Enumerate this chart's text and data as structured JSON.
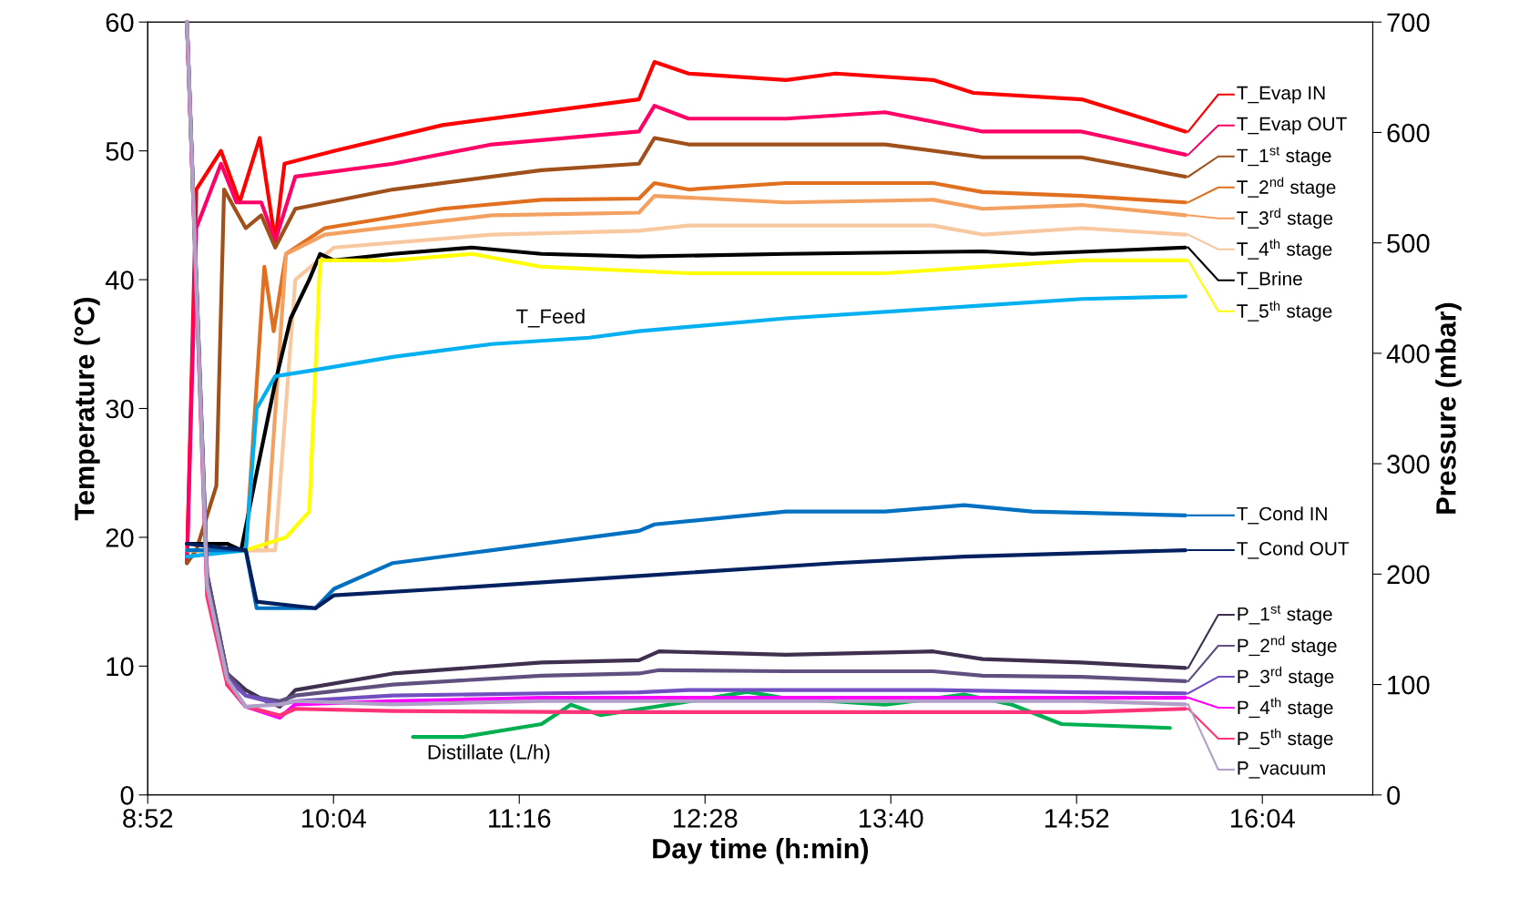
{
  "chart_data": {
    "type": "line",
    "xlabel": "Day time (h:min)",
    "ylabel": "Temperature (°C)",
    "y2label": "Pressure (mbar)",
    "xlim": [
      8.8667,
      16.78
    ],
    "xticks": [
      {
        "value": 8.8667,
        "label": "8:52"
      },
      {
        "value": 10.0667,
        "label": "10:04"
      },
      {
        "value": 11.2667,
        "label": "11:16"
      },
      {
        "value": 12.4667,
        "label": "12:28"
      },
      {
        "value": 13.6667,
        "label": "13:40"
      },
      {
        "value": 14.8667,
        "label": "14:52"
      },
      {
        "value": 16.0667,
        "label": "16:04"
      }
    ],
    "ylim": [
      0,
      60
    ],
    "yticks": [
      0,
      10,
      20,
      30,
      40,
      50,
      60
    ],
    "y2lim": [
      0,
      700
    ],
    "y2ticks": [
      0,
      100,
      200,
      300,
      400,
      500,
      600,
      700
    ],
    "grid": false,
    "legend": "right",
    "marker": "none",
    "line_style": "solid",
    "series": [
      {
        "name": "T_Evap IN",
        "color": "#ff0000",
        "x": [
          9.12,
          9.18,
          9.34,
          9.46,
          9.59,
          9.69,
          9.75,
          10.07,
          10.77,
          11.72,
          12.04,
          12.14,
          12.36,
          12.99,
          13.31,
          13.94,
          14.2,
          14.9,
          15.57
        ],
        "values": [
          18,
          47,
          50,
          46,
          51,
          43,
          49,
          50,
          52,
          53.5,
          54,
          56.9,
          56,
          55.5,
          56,
          55.5,
          54.5,
          54,
          51.5
        ]
      },
      {
        "name": "T_Evap OUT",
        "color": "#ff0066",
        "x": [
          9.12,
          9.18,
          9.34,
          9.44,
          9.6,
          9.69,
          9.82,
          10.45,
          11.09,
          12.04,
          12.14,
          12.36,
          12.99,
          13.63,
          14.26,
          14.9,
          15.57
        ],
        "values": [
          18,
          44,
          49,
          46,
          46,
          43,
          48,
          49,
          50.5,
          51.5,
          53.5,
          52.5,
          52.5,
          53,
          51.5,
          51.5,
          49.7
        ]
      },
      {
        "name": "T_1$^{st}$ stage",
        "color": "#a0501a",
        "x": [
          9.12,
          9.18,
          9.31,
          9.36,
          9.5,
          9.6,
          9.69,
          9.82,
          10.45,
          11.41,
          12.04,
          12.14,
          12.36,
          13.63,
          14.26,
          14.9,
          15.57
        ],
        "values": [
          18,
          19,
          24,
          47,
          44,
          45,
          42.5,
          45.5,
          47,
          48.5,
          49,
          51,
          50.5,
          50.5,
          49.5,
          49.5,
          48
        ]
      },
      {
        "name": "T_2$^{nd}$ stage",
        "color": "#e07020",
        "x": [
          9.12,
          9.5,
          9.62,
          9.68,
          9.76,
          10.01,
          10.77,
          11.41,
          12.04,
          12.14,
          12.36,
          12.99,
          13.94,
          14.26,
          14.9,
          15.57
        ],
        "values": [
          19,
          19,
          41,
          36,
          42,
          44,
          45.5,
          46.2,
          46.3,
          47.5,
          47,
          47.5,
          47.5,
          46.8,
          46.5,
          46
        ]
      },
      {
        "name": "T_3$^{rd}$ stage",
        "color": "#f4a060",
        "x": [
          9.12,
          9.63,
          9.76,
          10.01,
          11.09,
          12.04,
          12.14,
          12.99,
          13.94,
          14.26,
          14.9,
          15.57
        ],
        "values": [
          19,
          19,
          42,
          43.5,
          45,
          45.2,
          46.5,
          46,
          46.2,
          45.5,
          45.8,
          45
        ]
      },
      {
        "name": "T_4$^{th}$ stage",
        "color": "#f8c8a0",
        "x": [
          9.12,
          9.69,
          9.82,
          10.07,
          11.09,
          12.04,
          12.36,
          13.94,
          14.26,
          14.9,
          15.57
        ],
        "values": [
          19,
          19,
          40,
          42.5,
          43.5,
          43.8,
          44.2,
          44.2,
          43.5,
          44,
          43.5
        ]
      },
      {
        "name": "T_Brine",
        "color": "#000000",
        "x": [
          9.12,
          9.38,
          9.47,
          9.57,
          9.69,
          9.79,
          9.91,
          9.98,
          10.07,
          10.45,
          10.96,
          11.41,
          12.04,
          12.99,
          14.26,
          14.58,
          15.57
        ],
        "values": [
          19.5,
          19.5,
          19,
          25,
          32,
          37,
          40,
          42,
          41.5,
          42,
          42.5,
          42,
          41.8,
          42,
          42.2,
          42,
          42.5
        ]
      },
      {
        "name": "T_5$^{th}$ stage",
        "color": "#ffff00",
        "x": [
          9.12,
          9.5,
          9.76,
          9.91,
          9.98,
          10.45,
          10.96,
          11.41,
          12.36,
          13.63,
          14.26,
          14.9,
          15.57
        ],
        "values": [
          19,
          19,
          20,
          22,
          41.5,
          41.5,
          42,
          41,
          40.5,
          40.5,
          41,
          41.5,
          41.5
        ]
      },
      {
        "color": "#00b0f0",
        "x": [
          9.12,
          9.5,
          9.57,
          9.69,
          9.95,
          10.45,
          11.09,
          11.72,
          12.04,
          12.99,
          14.26,
          14.9,
          15.57
        ],
        "values": [
          18.5,
          19,
          30,
          32.5,
          33,
          34,
          35,
          35.5,
          36,
          37,
          38,
          38.5,
          38.7
        ]
      },
      {
        "name": "T_Cond IN",
        "color": "#0070c0",
        "x": [
          9.12,
          9.5,
          9.57,
          9.95,
          10.07,
          10.45,
          11.09,
          12.04,
          12.14,
          12.99,
          13.63,
          14.14,
          14.58,
          15.57
        ],
        "values": [
          19,
          19,
          14.5,
          14.5,
          16,
          18,
          19,
          20.5,
          21,
          22,
          22,
          22.5,
          22,
          21.7
        ]
      },
      {
        "name": "T_Cond OUT",
        "color": "#002060",
        "x": [
          9.12,
          9.5,
          9.57,
          9.95,
          10.07,
          10.77,
          12.04,
          13.31,
          14.14,
          15.57
        ],
        "values": [
          19.5,
          19,
          15,
          14.5,
          15.5,
          16,
          17,
          18,
          18.5,
          19
        ]
      },
      {
        "color": "#00b050",
        "x": [
          10.58,
          10.9,
          11.41,
          11.6,
          11.79,
          12.23,
          12.74,
          12.99,
          13.63,
          14.14,
          14.45,
          14.77,
          15.47
        ],
        "values": [
          4.5,
          4.5,
          5.5,
          7,
          6.2,
          7,
          8,
          7.5,
          7,
          7.8,
          7,
          5.5,
          5.2
        ]
      },
      {
        "name": "P_1$^{st}$ stage",
        "color": "#403050",
        "axis": "y2",
        "x": [
          9.12,
          9.25,
          9.38,
          9.5,
          9.63,
          9.72,
          9.82,
          10.45,
          11.41,
          12.04,
          12.17,
          12.99,
          13.94,
          14.26,
          14.9,
          15.57
        ],
        "values": [
          700,
          200,
          110,
          95,
          85,
          80,
          95,
          110,
          120,
          122,
          130,
          127,
          130,
          123,
          120,
          115
        ]
      },
      {
        "name": "P_2$^{nd}$ stage",
        "color": "#605080",
        "axis": "y2",
        "x": [
          9.12,
          9.25,
          9.38,
          9.5,
          9.72,
          9.82,
          10.45,
          11.41,
          12.04,
          12.17,
          12.99,
          13.94,
          14.26,
          14.9,
          15.57
        ],
        "values": [
          700,
          200,
          110,
          90,
          85,
          90,
          100,
          108,
          110,
          113,
          112,
          112,
          108,
          107,
          103
        ]
      },
      {
        "name": "P_3$^{rd}$ stage",
        "color": "#7050c0",
        "axis": "y2",
        "x": [
          9.12,
          9.25,
          9.38,
          9.5,
          9.72,
          9.82,
          10.45,
          11.41,
          12.04,
          12.36,
          13.94,
          14.9,
          15.57
        ],
        "values": [
          700,
          190,
          105,
          90,
          82,
          85,
          90,
          92,
          93,
          95,
          95,
          93,
          92
        ]
      },
      {
        "name": "P_4$^{th}$ stage",
        "color": "#ff00ff",
        "axis": "y2",
        "x": [
          9.38,
          9.5,
          9.72,
          9.82,
          10.45,
          11.41,
          13.63,
          14.9,
          15.57
        ],
        "values": [
          100,
          80,
          70,
          82,
          85,
          88,
          88,
          88,
          88
        ]
      },
      {
        "name": "P_5$^{th}$ stage",
        "color": "#ff3377",
        "axis": "y2",
        "x": [
          9.12,
          9.25,
          9.38,
          9.5,
          9.72,
          9.82,
          10.45,
          11.72,
          14.9,
          15.57
        ],
        "values": [
          700,
          180,
          100,
          80,
          72,
          78,
          76,
          75,
          75,
          78
        ]
      },
      {
        "name": "P_vacuum",
        "color": "#b0a0c8",
        "axis": "y2",
        "x": [
          9.12,
          9.25,
          9.38,
          9.5,
          9.72,
          9.82,
          10.45,
          11.41,
          12.04,
          13.63,
          14.9,
          15.57
        ],
        "values": [
          700,
          190,
          105,
          80,
          82,
          85,
          82,
          85,
          85,
          85,
          85,
          82
        ]
      }
    ],
    "annotations": [
      {
        "text": "T_Feed",
        "x": 11.47,
        "y": 35.3
      },
      {
        "text": "Distillate (L/h)",
        "x": 11.07,
        "y": 4.9
      }
    ]
  }
}
